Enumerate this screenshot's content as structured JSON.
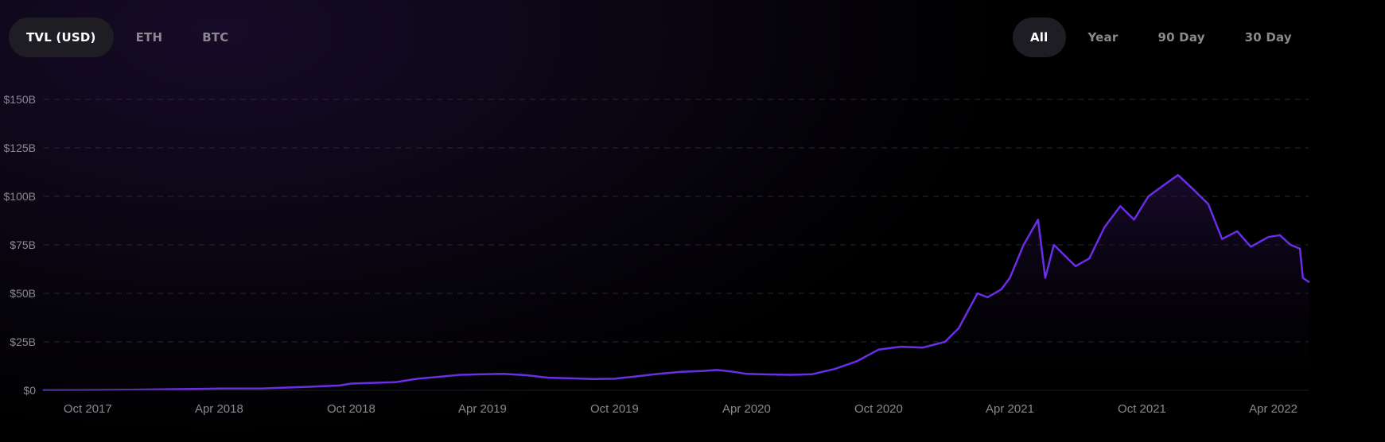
{
  "value_tabs": [
    {
      "label": "TVL (USD)",
      "active": true
    },
    {
      "label": "ETH",
      "active": false
    },
    {
      "label": "BTC",
      "active": false
    }
  ],
  "range_tabs": [
    {
      "label": "All",
      "active": true
    },
    {
      "label": "Year",
      "active": false
    },
    {
      "label": "90 Day",
      "active": false
    },
    {
      "label": "30 Day",
      "active": false
    }
  ],
  "colors": {
    "line": "#6a2ee6",
    "grid": "#2a2730",
    "axis_text": "#8b8890",
    "area_top": "#2a1250"
  },
  "chart_data": {
    "type": "area",
    "title": "",
    "xlabel": "",
    "ylabel": "",
    "ylim": [
      0,
      150
    ],
    "y_unit": "$B",
    "y_ticks": [
      0,
      25,
      50,
      75,
      100,
      125,
      150
    ],
    "y_tick_labels": [
      "$0",
      "$25B",
      "$50B",
      "$75B",
      "$100B",
      "$125B",
      "$150B"
    ],
    "x_ticks": [
      "2017-10-01",
      "2018-04-01",
      "2018-10-01",
      "2019-04-01",
      "2019-10-01",
      "2020-04-01",
      "2020-10-01",
      "2021-04-01",
      "2021-10-01",
      "2022-04-01"
    ],
    "x_tick_labels": [
      "Oct 2017",
      "Apr 2018",
      "Oct 2018",
      "Apr 2019",
      "Oct 2019",
      "Apr 2020",
      "Oct 2020",
      "Apr 2021",
      "Oct 2021",
      "Apr 2022"
    ],
    "xlim": [
      "2017-08-01",
      "2022-05-20"
    ],
    "grid": true,
    "series": [
      {
        "values": [
          [
            "2017-08-01",
            0.1
          ],
          [
            "2017-10-01",
            0.15
          ],
          [
            "2017-12-01",
            0.3
          ],
          [
            "2018-02-01",
            0.6
          ],
          [
            "2018-04-01",
            0.9
          ],
          [
            "2018-06-01",
            1.0
          ],
          [
            "2018-08-01",
            1.8
          ],
          [
            "2018-09-15",
            2.5
          ],
          [
            "2018-10-01",
            3.5
          ],
          [
            "2018-12-01",
            4.2
          ],
          [
            "2019-01-01",
            6.0
          ],
          [
            "2019-02-01",
            7.0
          ],
          [
            "2019-03-01",
            8.0
          ],
          [
            "2019-04-01",
            8.3
          ],
          [
            "2019-05-01",
            8.5
          ],
          [
            "2019-06-01",
            7.8
          ],
          [
            "2019-07-01",
            6.5
          ],
          [
            "2019-08-01",
            6.2
          ],
          [
            "2019-09-01",
            5.8
          ],
          [
            "2019-10-01",
            6.0
          ],
          [
            "2019-11-01",
            7.2
          ],
          [
            "2019-12-01",
            8.5
          ],
          [
            "2020-01-01",
            9.5
          ],
          [
            "2020-02-01",
            10.0
          ],
          [
            "2020-02-20",
            10.5
          ],
          [
            "2020-03-15",
            9.5
          ],
          [
            "2020-04-01",
            8.5
          ],
          [
            "2020-05-01",
            8.2
          ],
          [
            "2020-06-01",
            8.0
          ],
          [
            "2020-07-01",
            8.3
          ],
          [
            "2020-08-01",
            11.0
          ],
          [
            "2020-09-01",
            15.0
          ],
          [
            "2020-10-01",
            21.0
          ],
          [
            "2020-11-01",
            22.5
          ],
          [
            "2020-12-01",
            22.0
          ],
          [
            "2021-01-01",
            25.0
          ],
          [
            "2021-01-20",
            32.0
          ],
          [
            "2021-02-15",
            50.0
          ],
          [
            "2021-03-01",
            48.0
          ],
          [
            "2021-03-20",
            52.0
          ],
          [
            "2021-04-01",
            58.0
          ],
          [
            "2021-04-20",
            75.0
          ],
          [
            "2021-05-10",
            88.0
          ],
          [
            "2021-05-20",
            58.0
          ],
          [
            "2021-06-01",
            75.0
          ],
          [
            "2021-06-20",
            68.0
          ],
          [
            "2021-07-01",
            64.0
          ],
          [
            "2021-07-20",
            68.0
          ],
          [
            "2021-08-10",
            84.0
          ],
          [
            "2021-09-01",
            95.0
          ],
          [
            "2021-09-20",
            88.0
          ],
          [
            "2021-10-10",
            100.0
          ],
          [
            "2021-11-01",
            106.0
          ],
          [
            "2021-11-20",
            111.0
          ],
          [
            "2021-12-10",
            104.0
          ],
          [
            "2022-01-01",
            96.0
          ],
          [
            "2022-01-20",
            78.0
          ],
          [
            "2022-02-10",
            82.0
          ],
          [
            "2022-03-01",
            74.0
          ],
          [
            "2022-03-25",
            79.0
          ],
          [
            "2022-04-10",
            80.0
          ],
          [
            "2022-04-25",
            75.0
          ],
          [
            "2022-05-08",
            73.0
          ],
          [
            "2022-05-12",
            58.0
          ],
          [
            "2022-05-20",
            56.0
          ]
        ]
      }
    ]
  }
}
